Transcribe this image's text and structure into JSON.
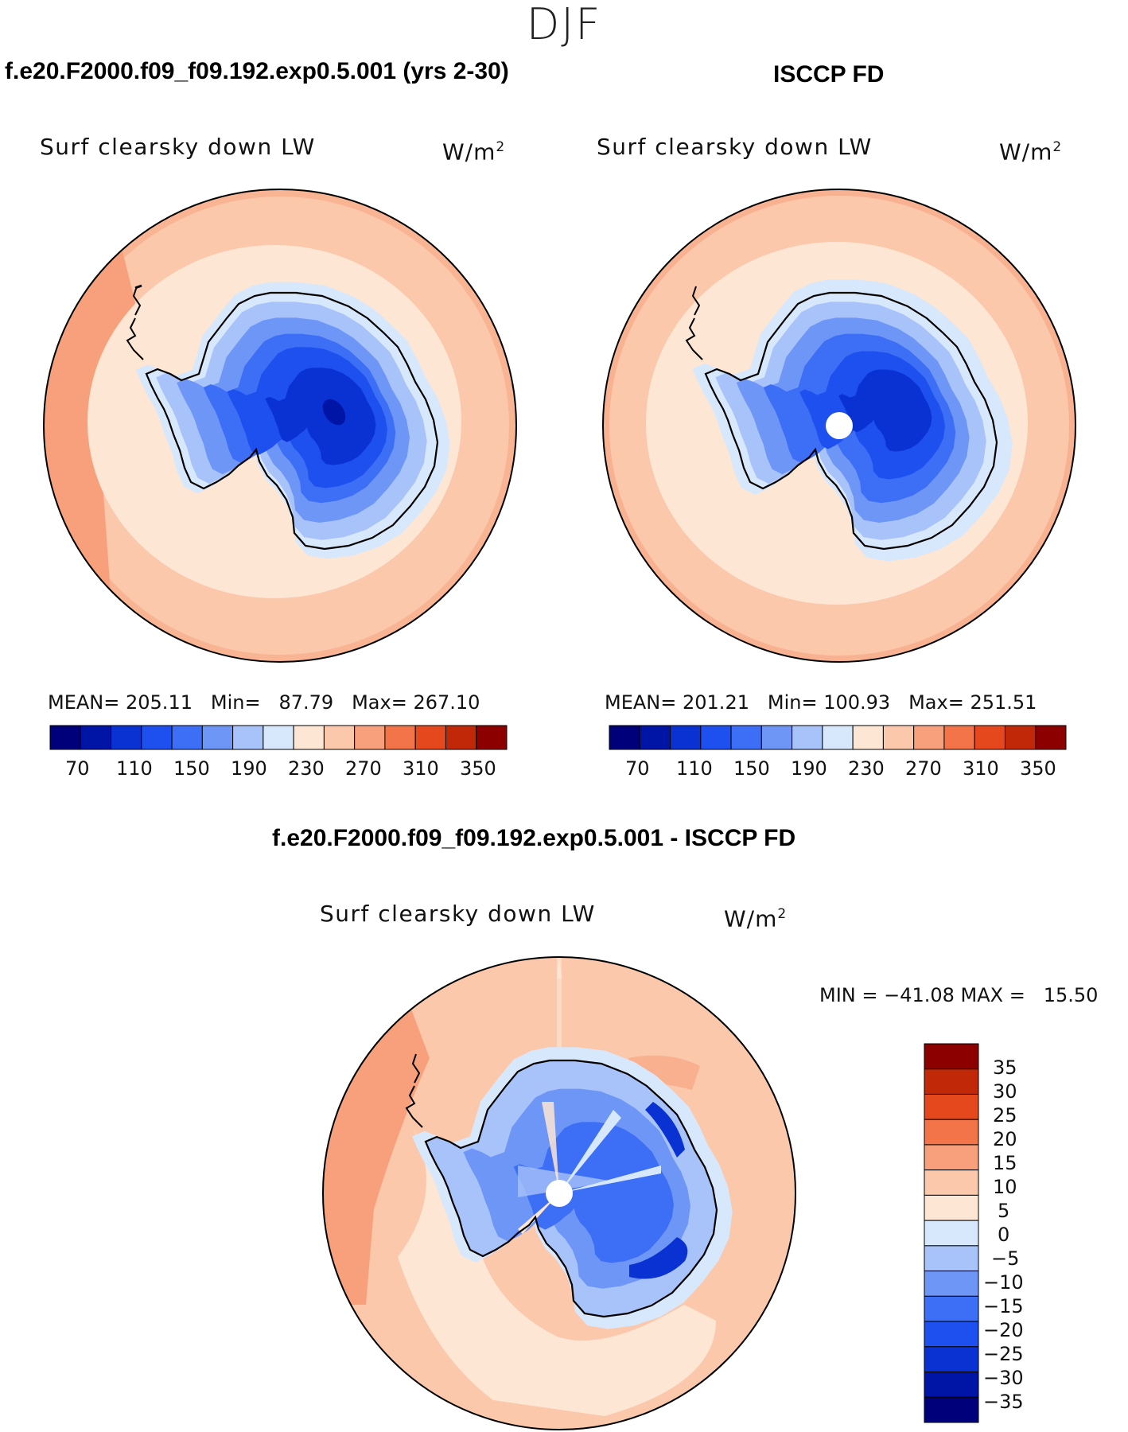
{
  "figure": {
    "season": "DJF"
  },
  "panels": [
    {
      "title": "f.e20.F2000.f09_f09.192.exp0.5.001 (yrs 2-30)",
      "variable_label": "Surf clearsky down LW",
      "units": "W/m",
      "units_sup": "2",
      "stats": {
        "mean_label": "MEAN=",
        "mean": "205.11",
        "min_label": "Min=",
        "min": "87.79",
        "max_label": "Max=",
        "max": "267.10"
      },
      "pole_mask": false
    },
    {
      "title": "ISCCP FD",
      "variable_label": "Surf clearsky down LW",
      "units": "W/m",
      "units_sup": "2",
      "stats": {
        "mean_label": "MEAN=",
        "mean": "201.21",
        "min_label": "Min=",
        "min": "100.93",
        "max_label": "Max=",
        "max": "251.51"
      },
      "pole_mask": true
    }
  ],
  "diff_panel": {
    "title": "f.e20.F2000.f09_f09.192.exp0.5.001 - ISCCP FD",
    "variable_label": "Surf clearsky down LW",
    "units": "W/m",
    "units_sup": "2",
    "minmax_text": "MIN = −41.08 MAX =   15.50",
    "pole_mask": true
  },
  "abs_colorbar": {
    "ticks": [
      "70",
      "110",
      "150",
      "190",
      "230",
      "270",
      "310",
      "350"
    ],
    "colors": [
      "#00007a",
      "#0014a6",
      "#0a32d2",
      "#1e50f0",
      "#3c6ef6",
      "#6e96f6",
      "#a8c2fa",
      "#d8e8fc",
      "#fde6d4",
      "#fbc8ac",
      "#f8a07c",
      "#f27448",
      "#e4481c",
      "#c02808",
      "#8c0000"
    ]
  },
  "diff_colorbar": {
    "ticks": [
      "35",
      "30",
      "25",
      "20",
      "15",
      "10",
      "5",
      "0",
      "−5",
      "−10",
      "−15",
      "−20",
      "−25",
      "−30",
      "−35"
    ],
    "colors": [
      "#8c0000",
      "#c02808",
      "#e4481c",
      "#f27448",
      "#f8a07c",
      "#fbc8ac",
      "#fde6d4",
      "#d8e8fc",
      "#a8c2fa",
      "#6e96f6",
      "#3c6ef6",
      "#1e50f0",
      "#0a32d2",
      "#0014a6",
      "#00007a"
    ]
  }
}
